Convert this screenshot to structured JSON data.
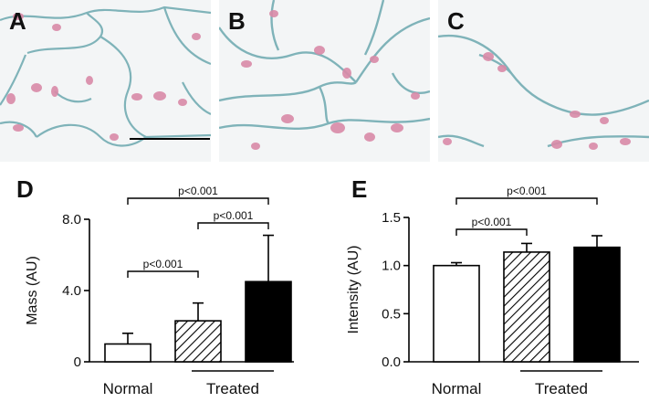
{
  "panels": {
    "A": "A",
    "B": "B",
    "C": "C",
    "D": "D",
    "E": "E"
  },
  "colors": {
    "tissue_background": "#f3f5f6",
    "cell_membrane": "#7fb3b9",
    "nucleus": "#d98aa8",
    "bar_fill_normal": "#ffffff",
    "bar_fill_treated_solid": "#000000"
  },
  "chart_data": [
    {
      "type": "bar",
      "panel": "D",
      "categories": [
        "Normal",
        "Treated (hatched)",
        "Treated (solid)"
      ],
      "xlabel_normal": "Normal",
      "xlabel_treated": "Treated",
      "ylabel": "Mass (AU)",
      "ylim": [
        0,
        8
      ],
      "yticks": [
        "0",
        "4.0",
        "8.0"
      ],
      "values": [
        1.0,
        2.3,
        4.5
      ],
      "errors": [
        0.6,
        1.0,
        2.6
      ],
      "patterns": [
        "open",
        "hatched",
        "solid"
      ],
      "annotations": [
        {
          "text": "p<0.001",
          "from": 0,
          "to": 2
        },
        {
          "text": "p<0.001",
          "from": 1,
          "to": 2
        },
        {
          "text": "p<0.001",
          "from": 0,
          "to": 1
        }
      ]
    },
    {
      "type": "bar",
      "panel": "E",
      "categories": [
        "Normal",
        "Treated (hatched)",
        "Treated (solid)"
      ],
      "xlabel_normal": "Normal",
      "xlabel_treated": "Treated",
      "ylabel": "Intensity (AU)",
      "ylim": [
        0,
        1.5
      ],
      "yticks": [
        "0.0",
        "0.5",
        "1.0",
        "1.5"
      ],
      "values": [
        1.0,
        1.14,
        1.19
      ],
      "errors": [
        0.03,
        0.09,
        0.12
      ],
      "patterns": [
        "open",
        "hatched",
        "solid"
      ],
      "annotations": [
        {
          "text": "p<0.001",
          "from": 0,
          "to": 2
        },
        {
          "text": "p<0.001",
          "from": 0,
          "to": 1
        }
      ]
    }
  ]
}
